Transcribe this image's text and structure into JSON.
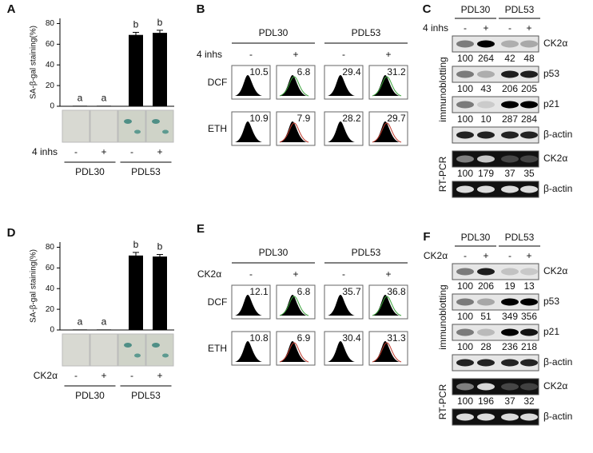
{
  "chart_data": [
    {
      "type": "bar",
      "label": "A",
      "ylabel": "SA-β-gal staining(%)",
      "categories": [
        "-",
        "+",
        "-",
        "+"
      ],
      "values": [
        0.5,
        0.5,
        69,
        71
      ],
      "errors": [
        0,
        0,
        2.5,
        2.5
      ],
      "annotations": [
        "a",
        "a",
        "b",
        "b"
      ],
      "groups": [
        "PDL30",
        "PDL53"
      ],
      "treatment": "4 inhs",
      "ylim": [
        0,
        85
      ],
      "yticks": [
        0,
        20,
        40,
        60,
        80
      ],
      "color": "#000000"
    },
    {
      "type": "bar",
      "label": "D",
      "ylabel": "SA-β-gal staining(%)",
      "categories": [
        "-",
        "+",
        "-",
        "+"
      ],
      "values": [
        0.5,
        0.5,
        72,
        71
      ],
      "errors": [
        0,
        0,
        3,
        2
      ],
      "annotations": [
        "a",
        "a",
        "b",
        "b"
      ],
      "groups": [
        "PDL30",
        "PDL53"
      ],
      "treatment": "CK2α",
      "ylim": [
        0,
        85
      ],
      "yticks": [
        0,
        20,
        40,
        60,
        80
      ],
      "color": "#000000"
    }
  ],
  "flow": [
    {
      "label": "B",
      "groups": [
        "PDL30",
        "PDL53"
      ],
      "treatment": "4 inhs",
      "signs": [
        "-",
        "+",
        "-",
        "+"
      ],
      "rows": [
        {
          "name": "DCF",
          "values": [
            10.5,
            6.8,
            29.4,
            31.2
          ]
        },
        {
          "name": "ETH",
          "values": [
            10.9,
            7.9,
            28.2,
            29.7
          ]
        }
      ]
    },
    {
      "label": "E",
      "groups": [
        "PDL30",
        "PDL53"
      ],
      "treatment": "CK2α",
      "signs": [
        "-",
        "+",
        "-",
        "+"
      ],
      "rows": [
        {
          "name": "DCF",
          "values": [
            12.1,
            6.8,
            35.7,
            36.8
          ]
        },
        {
          "name": "ETH",
          "values": [
            10.8,
            6.9,
            30.4,
            31.3
          ]
        }
      ]
    }
  ],
  "blots": [
    {
      "label": "C",
      "groups": [
        "PDL30",
        "PDL53"
      ],
      "treatment": "4 inhs",
      "signs": [
        "-",
        "+",
        "-",
        "+"
      ],
      "sections": [
        {
          "name": "immunoblotting",
          "rows": [
            {
              "name": "CK2α",
              "values": [
                100,
                264,
                42,
                48
              ]
            },
            {
              "name": "p53",
              "values": [
                100,
                43,
                206,
                205
              ]
            },
            {
              "name": "p21",
              "values": [
                100,
                10,
                287,
                284
              ]
            },
            {
              "name": "β-actin"
            }
          ]
        },
        {
          "name": "RT-PCR",
          "rows": [
            {
              "name": "CK2α",
              "values": [
                100,
                179,
                37,
                35
              ]
            },
            {
              "name": "β-actin"
            }
          ]
        }
      ]
    },
    {
      "label": "F",
      "groups": [
        "PDL30",
        "PDL53"
      ],
      "treatment": "CK2α",
      "signs": [
        "-",
        "+",
        "-",
        "+"
      ],
      "sections": [
        {
          "name": "immunoblotting",
          "rows": [
            {
              "name": "CK2α",
              "values": [
                100,
                206,
                19,
                13
              ]
            },
            {
              "name": "p53",
              "values": [
                100,
                51,
                349,
                356
              ]
            },
            {
              "name": "p21",
              "values": [
                100,
                28,
                236,
                218
              ]
            },
            {
              "name": "β-actin"
            }
          ]
        },
        {
          "name": "RT-PCR",
          "rows": [
            {
              "name": "CK2α",
              "values": [
                100,
                196,
                37,
                32
              ]
            },
            {
              "name": "β-actin"
            }
          ]
        }
      ]
    }
  ]
}
